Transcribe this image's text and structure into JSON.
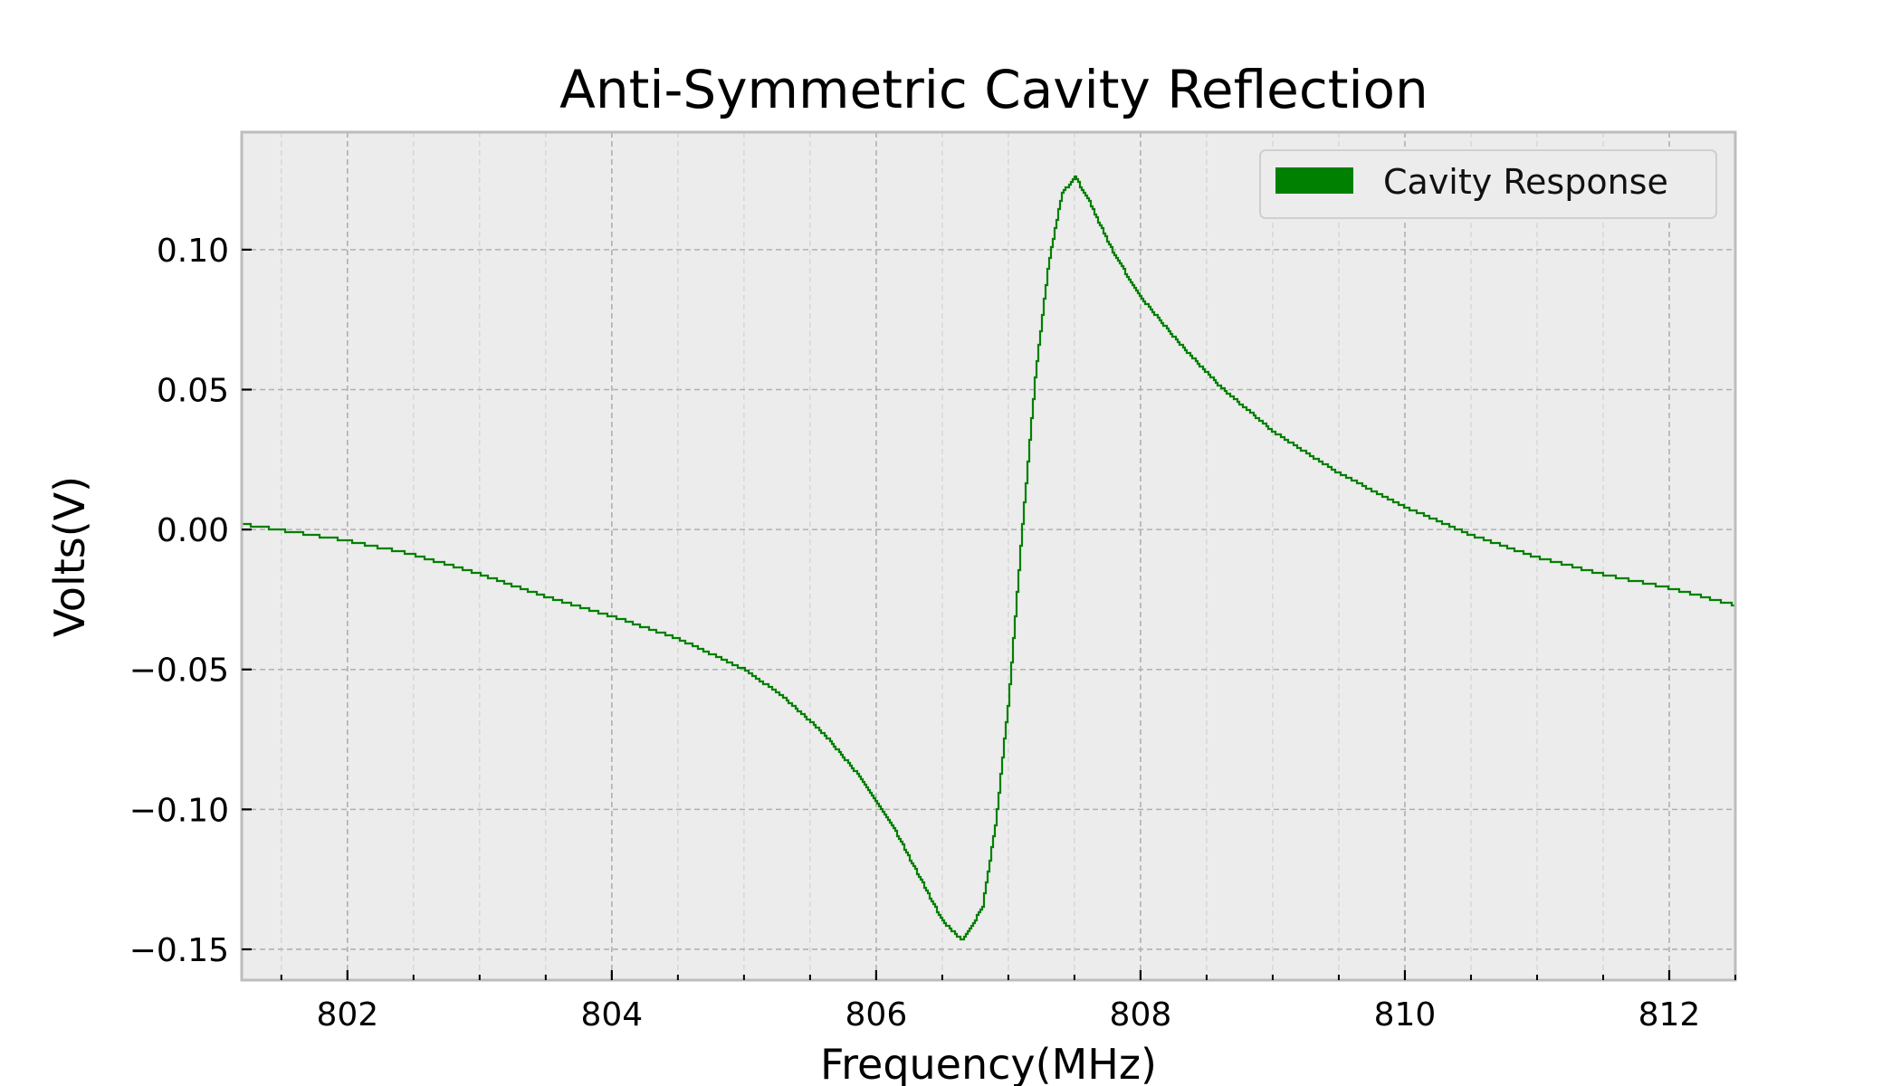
{
  "chart_data": {
    "type": "line",
    "title": "Anti-Symmetric Cavity Reflection",
    "xlabel": "Frequency(MHz)",
    "ylabel": "Volts(V)",
    "xlim": [
      801.2,
      812.5
    ],
    "ylim": [
      -0.161,
      0.142
    ],
    "xticks": [
      802,
      804,
      806,
      808,
      810,
      812
    ],
    "xtick_labels": [
      "802",
      "804",
      "806",
      "808",
      "810",
      "812"
    ],
    "yticks": [
      0.1,
      0.05,
      0.0,
      -0.05,
      -0.1,
      -0.15
    ],
    "ytick_labels": [
      "0.10",
      "0.05",
      "0.00",
      "−0.05",
      "−0.10",
      "−0.15"
    ],
    "grid": true,
    "legend_position": "top-right",
    "colors": {
      "series": "#008000",
      "axes_background": "#ececec",
      "spine": "#bdbdbd"
    },
    "series": [
      {
        "name": "Cavity Response",
        "x": [
          801.2,
          801.6,
          802.0,
          802.5,
          803.0,
          803.5,
          804.0,
          804.5,
          805.0,
          805.3,
          805.6,
          805.9,
          806.1,
          806.3,
          806.5,
          806.65,
          806.8,
          806.9,
          807.0,
          807.1,
          807.2,
          807.3,
          807.4,
          807.5,
          807.6,
          807.7,
          807.8,
          808.0,
          808.3,
          808.6,
          809.0,
          809.5,
          810.0,
          810.5,
          811.0,
          811.5,
          812.0,
          812.5
        ],
        "y": [
          0.002,
          -0.001,
          -0.004,
          -0.009,
          -0.016,
          -0.024,
          -0.031,
          -0.039,
          -0.05,
          -0.06,
          -0.073,
          -0.09,
          -0.104,
          -0.122,
          -0.14,
          -0.147,
          -0.135,
          -0.105,
          -0.06,
          0.0,
          0.055,
          0.095,
          0.12,
          0.126,
          0.118,
          0.108,
          0.098,
          0.083,
          0.066,
          0.051,
          0.035,
          0.02,
          0.008,
          -0.002,
          -0.01,
          -0.016,
          -0.021,
          -0.027
        ]
      }
    ]
  }
}
